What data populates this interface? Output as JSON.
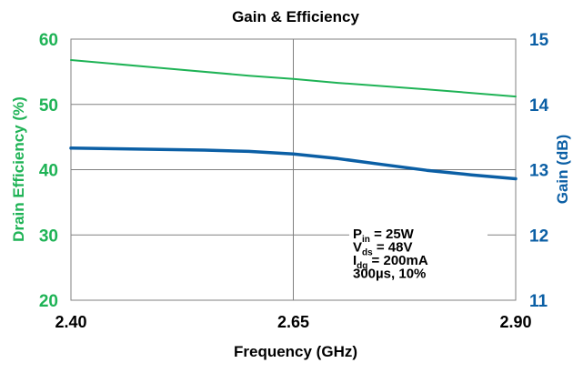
{
  "chart_data": {
    "type": "line",
    "title": "Gain & Efficiency",
    "xlabel": "Frequency (GHz)",
    "ylabel_left": "Drain Efficiency (%)",
    "ylabel_right": "Gain (dB)",
    "xlim": [
      2.4,
      2.9
    ],
    "ylim_left": [
      20,
      60
    ],
    "ylim_right": [
      11,
      15
    ],
    "x_ticks": [
      "2.40",
      "2.65",
      "2.90"
    ],
    "y_left_ticks": [
      "20",
      "30",
      "40",
      "50",
      "60"
    ],
    "y_right_ticks": [
      "11",
      "12",
      "13",
      "14",
      "15"
    ],
    "grid": true,
    "colors": {
      "efficiency": "#1fb356",
      "gain": "#0b5fa5"
    },
    "series": [
      {
        "axis": "left",
        "x": [
          2.4,
          2.5,
          2.6,
          2.65,
          2.7,
          2.8,
          2.9
        ],
        "values": [
          56.8,
          55.6,
          54.4,
          53.9,
          53.3,
          52.3,
          51.2
        ]
      },
      {
        "axis": "right",
        "x": [
          2.4,
          2.45,
          2.5,
          2.55,
          2.6,
          2.65,
          2.7,
          2.75,
          2.8,
          2.85,
          2.9
        ],
        "values": [
          13.33,
          13.32,
          13.31,
          13.3,
          13.28,
          13.24,
          13.17,
          13.08,
          12.99,
          12.92,
          12.86
        ]
      }
    ],
    "annotation": {
      "lines": [
        {
          "main": "P",
          "sub": "in",
          "rest": " = 25W"
        },
        {
          "main": "V",
          "sub": "ds",
          "rest": " = 48V"
        },
        {
          "main": "I",
          "sub": "dq",
          "rest": " = 200mA"
        },
        {
          "main": "300µs, 10%",
          "sub": "",
          "rest": ""
        }
      ]
    }
  }
}
